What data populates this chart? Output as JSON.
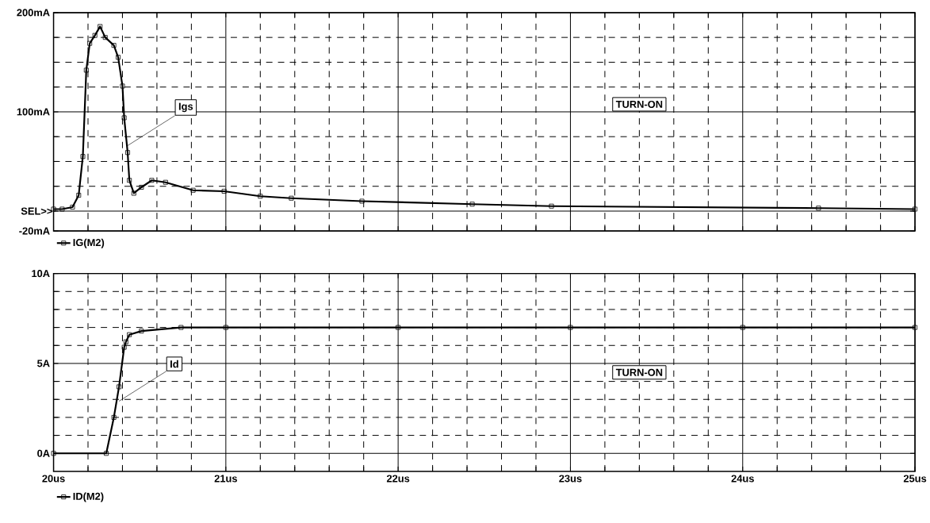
{
  "chart_data": [
    {
      "type": "line",
      "legend": "bottom left",
      "grid": true,
      "marker": "square",
      "line_style": "solid",
      "tick_labels": "y",
      "xlim": [
        20,
        25
      ],
      "ylim": [
        -20,
        200
      ],
      "xticks": [
        20,
        21,
        22,
        23,
        24,
        25
      ],
      "yticks": [
        {
          "value": -20,
          "label": "-20mA"
        },
        {
          "value": 0,
          "label": null
        },
        {
          "value": 100,
          "label": "100mA"
        },
        {
          "value": 200,
          "label": "200mA"
        }
      ],
      "series": [
        {
          "name": "IG(M2)",
          "color": "#000000",
          "x": [
            20.0,
            20.05,
            20.11,
            20.146,
            20.17,
            20.19,
            20.21,
            20.24,
            20.27,
            20.3,
            20.35,
            20.375,
            20.4,
            20.41,
            20.43,
            20.44,
            20.466,
            20.51,
            20.57,
            20.65,
            20.81,
            20.99,
            21.2,
            21.38,
            21.79,
            22.43,
            22.89,
            24.44,
            25.0
          ],
          "values": [
            2,
            2,
            4,
            16,
            55,
            142,
            169,
            177,
            186,
            175,
            167,
            155,
            126,
            94,
            59,
            31,
            18,
            24,
            31,
            29,
            21,
            20,
            15,
            13,
            10,
            7,
            5,
            3,
            2
          ]
        }
      ],
      "annotations": [
        {
          "text": "Igs",
          "x": 20.43,
          "y": 66
        },
        "TURN-ON",
        {
          "text": "SEL>>",
          "x": 20,
          "y": 0
        }
      ]
    },
    {
      "type": "line",
      "legend": "bottom left",
      "grid": true,
      "marker": "square",
      "line_style": "solid",
      "xlim": [
        20,
        25
      ],
      "ylim": [
        -1,
        10
      ],
      "xticks": [
        {
          "value": 20,
          "label": "20us"
        },
        {
          "value": 21,
          "label": "21us"
        },
        {
          "value": 22,
          "label": "22us"
        },
        {
          "value": 23,
          "label": "23us"
        },
        {
          "value": 24,
          "label": "24us"
        },
        {
          "value": 25,
          "label": "25us"
        }
      ],
      "yticks": [
        {
          "value": 0,
          "label": "0A"
        },
        {
          "value": 5,
          "label": "5A"
        },
        {
          "value": 10,
          "label": "10A"
        }
      ],
      "series": [
        {
          "name": "ID(M2)",
          "color": "#000000",
          "x": [
            20.0,
            20.306,
            20.35,
            20.38,
            20.41,
            20.42,
            20.44,
            20.51,
            20.74,
            21.0,
            22.0,
            23.0,
            24.0,
            25.0
          ],
          "values": [
            0,
            0,
            2,
            3.7,
            5.9,
            6.2,
            6.6,
            6.8,
            7,
            7,
            7,
            7,
            7,
            7
          ]
        }
      ],
      "annotations": [
        {
          "text": "Id",
          "x": 20.38,
          "y": 2.9
        },
        "TURN-ON"
      ]
    }
  ]
}
